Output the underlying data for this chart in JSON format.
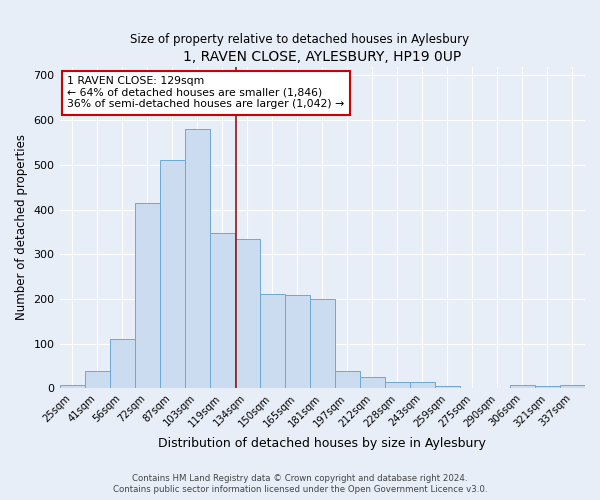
{
  "title": "1, RAVEN CLOSE, AYLESBURY, HP19 0UP",
  "subtitle": "Size of property relative to detached houses in Aylesbury",
  "xlabel": "Distribution of detached houses by size in Aylesbury",
  "ylabel": "Number of detached properties",
  "categories": [
    "25sqm",
    "41sqm",
    "56sqm",
    "72sqm",
    "87sqm",
    "103sqm",
    "119sqm",
    "134sqm",
    "150sqm",
    "165sqm",
    "181sqm",
    "197sqm",
    "212sqm",
    "228sqm",
    "243sqm",
    "259sqm",
    "275sqm",
    "290sqm",
    "306sqm",
    "321sqm",
    "337sqm"
  ],
  "values": [
    8,
    38,
    110,
    414,
    510,
    580,
    347,
    333,
    210,
    208,
    200,
    38,
    25,
    13,
    14,
    5,
    0,
    0,
    8,
    5,
    8
  ],
  "bar_color": "#ccdcf0",
  "bar_edge_color": "#6aaad4",
  "background_color": "#e8eef8",
  "grid_color": "#ffffff",
  "vline_color": "#8b1a1a",
  "vline_pos": 6.55,
  "annotation_text": "1 RAVEN CLOSE: 129sqm\n← 64% of detached houses are smaller (1,846)\n36% of semi-detached houses are larger (1,042) →",
  "annotation_box_color": "#ffffff",
  "annotation_box_edge": "#cc0000",
  "footer1": "Contains HM Land Registry data © Crown copyright and database right 2024.",
  "footer2": "Contains public sector information licensed under the Open Government Licence v3.0.",
  "ylim": [
    0,
    720
  ],
  "yticks": [
    0,
    100,
    200,
    300,
    400,
    500,
    600,
    700
  ]
}
